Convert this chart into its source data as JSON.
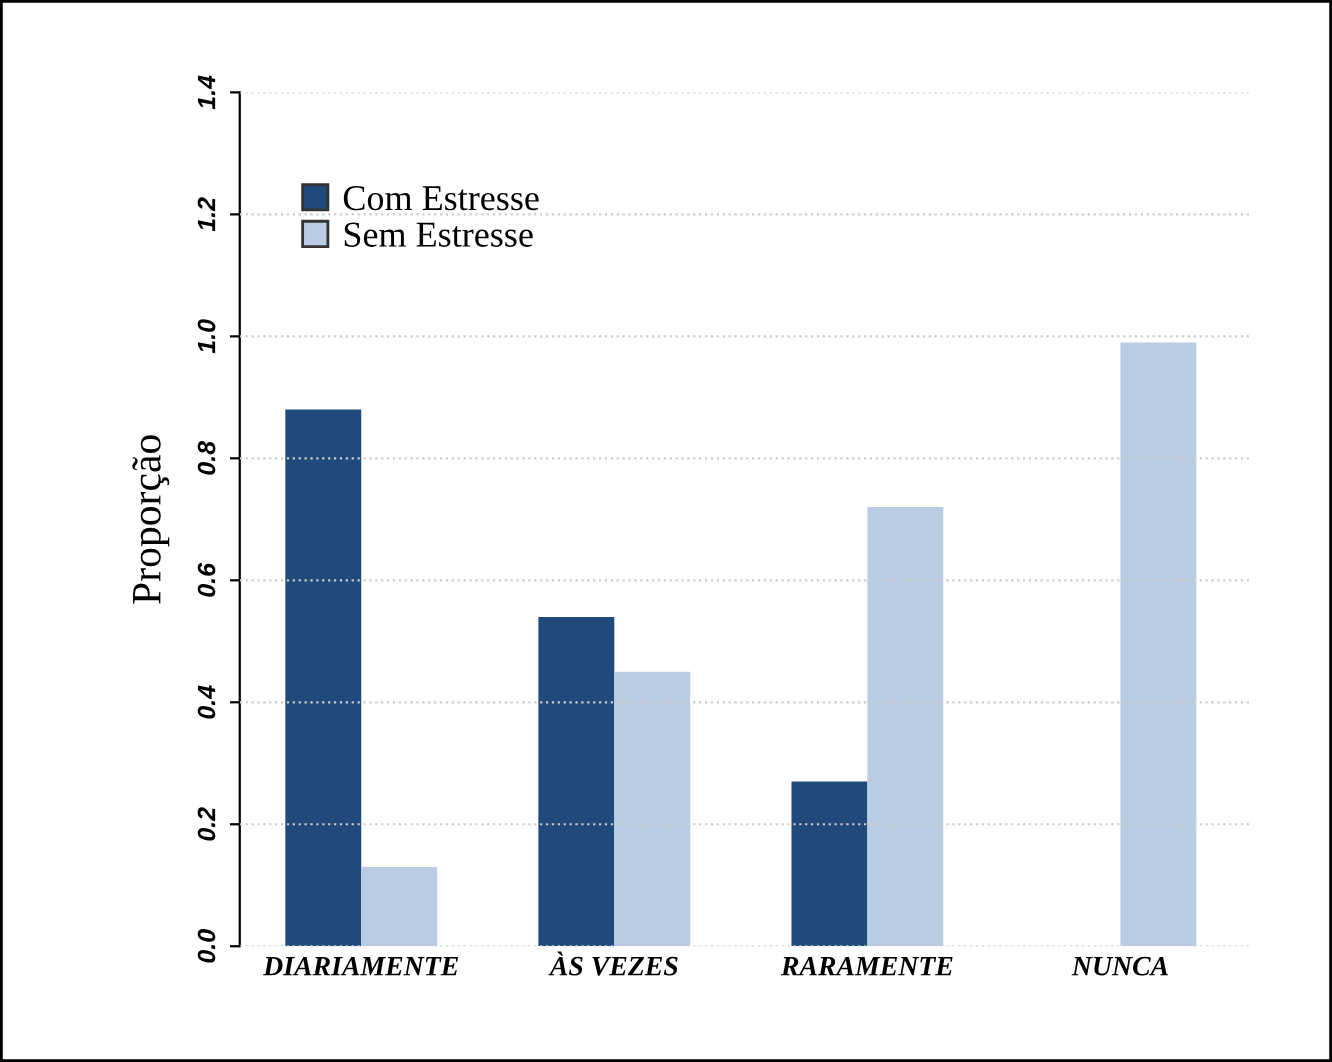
{
  "chart_data": {
    "type": "bar",
    "ylabel": "Proporção",
    "categories": [
      "DIARIAMENTE",
      "ÀS VEZES",
      "RARAMENTE",
      "NUNCA"
    ],
    "series": [
      {
        "name": "Com Estresse",
        "color": "#214a7c",
        "values": [
          0.88,
          0.54,
          0.27,
          0.0
        ]
      },
      {
        "name": "Sem Estresse",
        "color": "#b9cce3",
        "values": [
          0.13,
          0.45,
          0.72,
          0.99
        ]
      }
    ],
    "ylim": [
      0,
      1.4
    ],
    "yticks": [
      {
        "value": 0,
        "label": "0.0"
      },
      0.2,
      0.4,
      0.6,
      0.8,
      {
        "value": 1,
        "label": "1.0"
      },
      1.2,
      1.4
    ],
    "grid": "y",
    "legend": "top left"
  }
}
